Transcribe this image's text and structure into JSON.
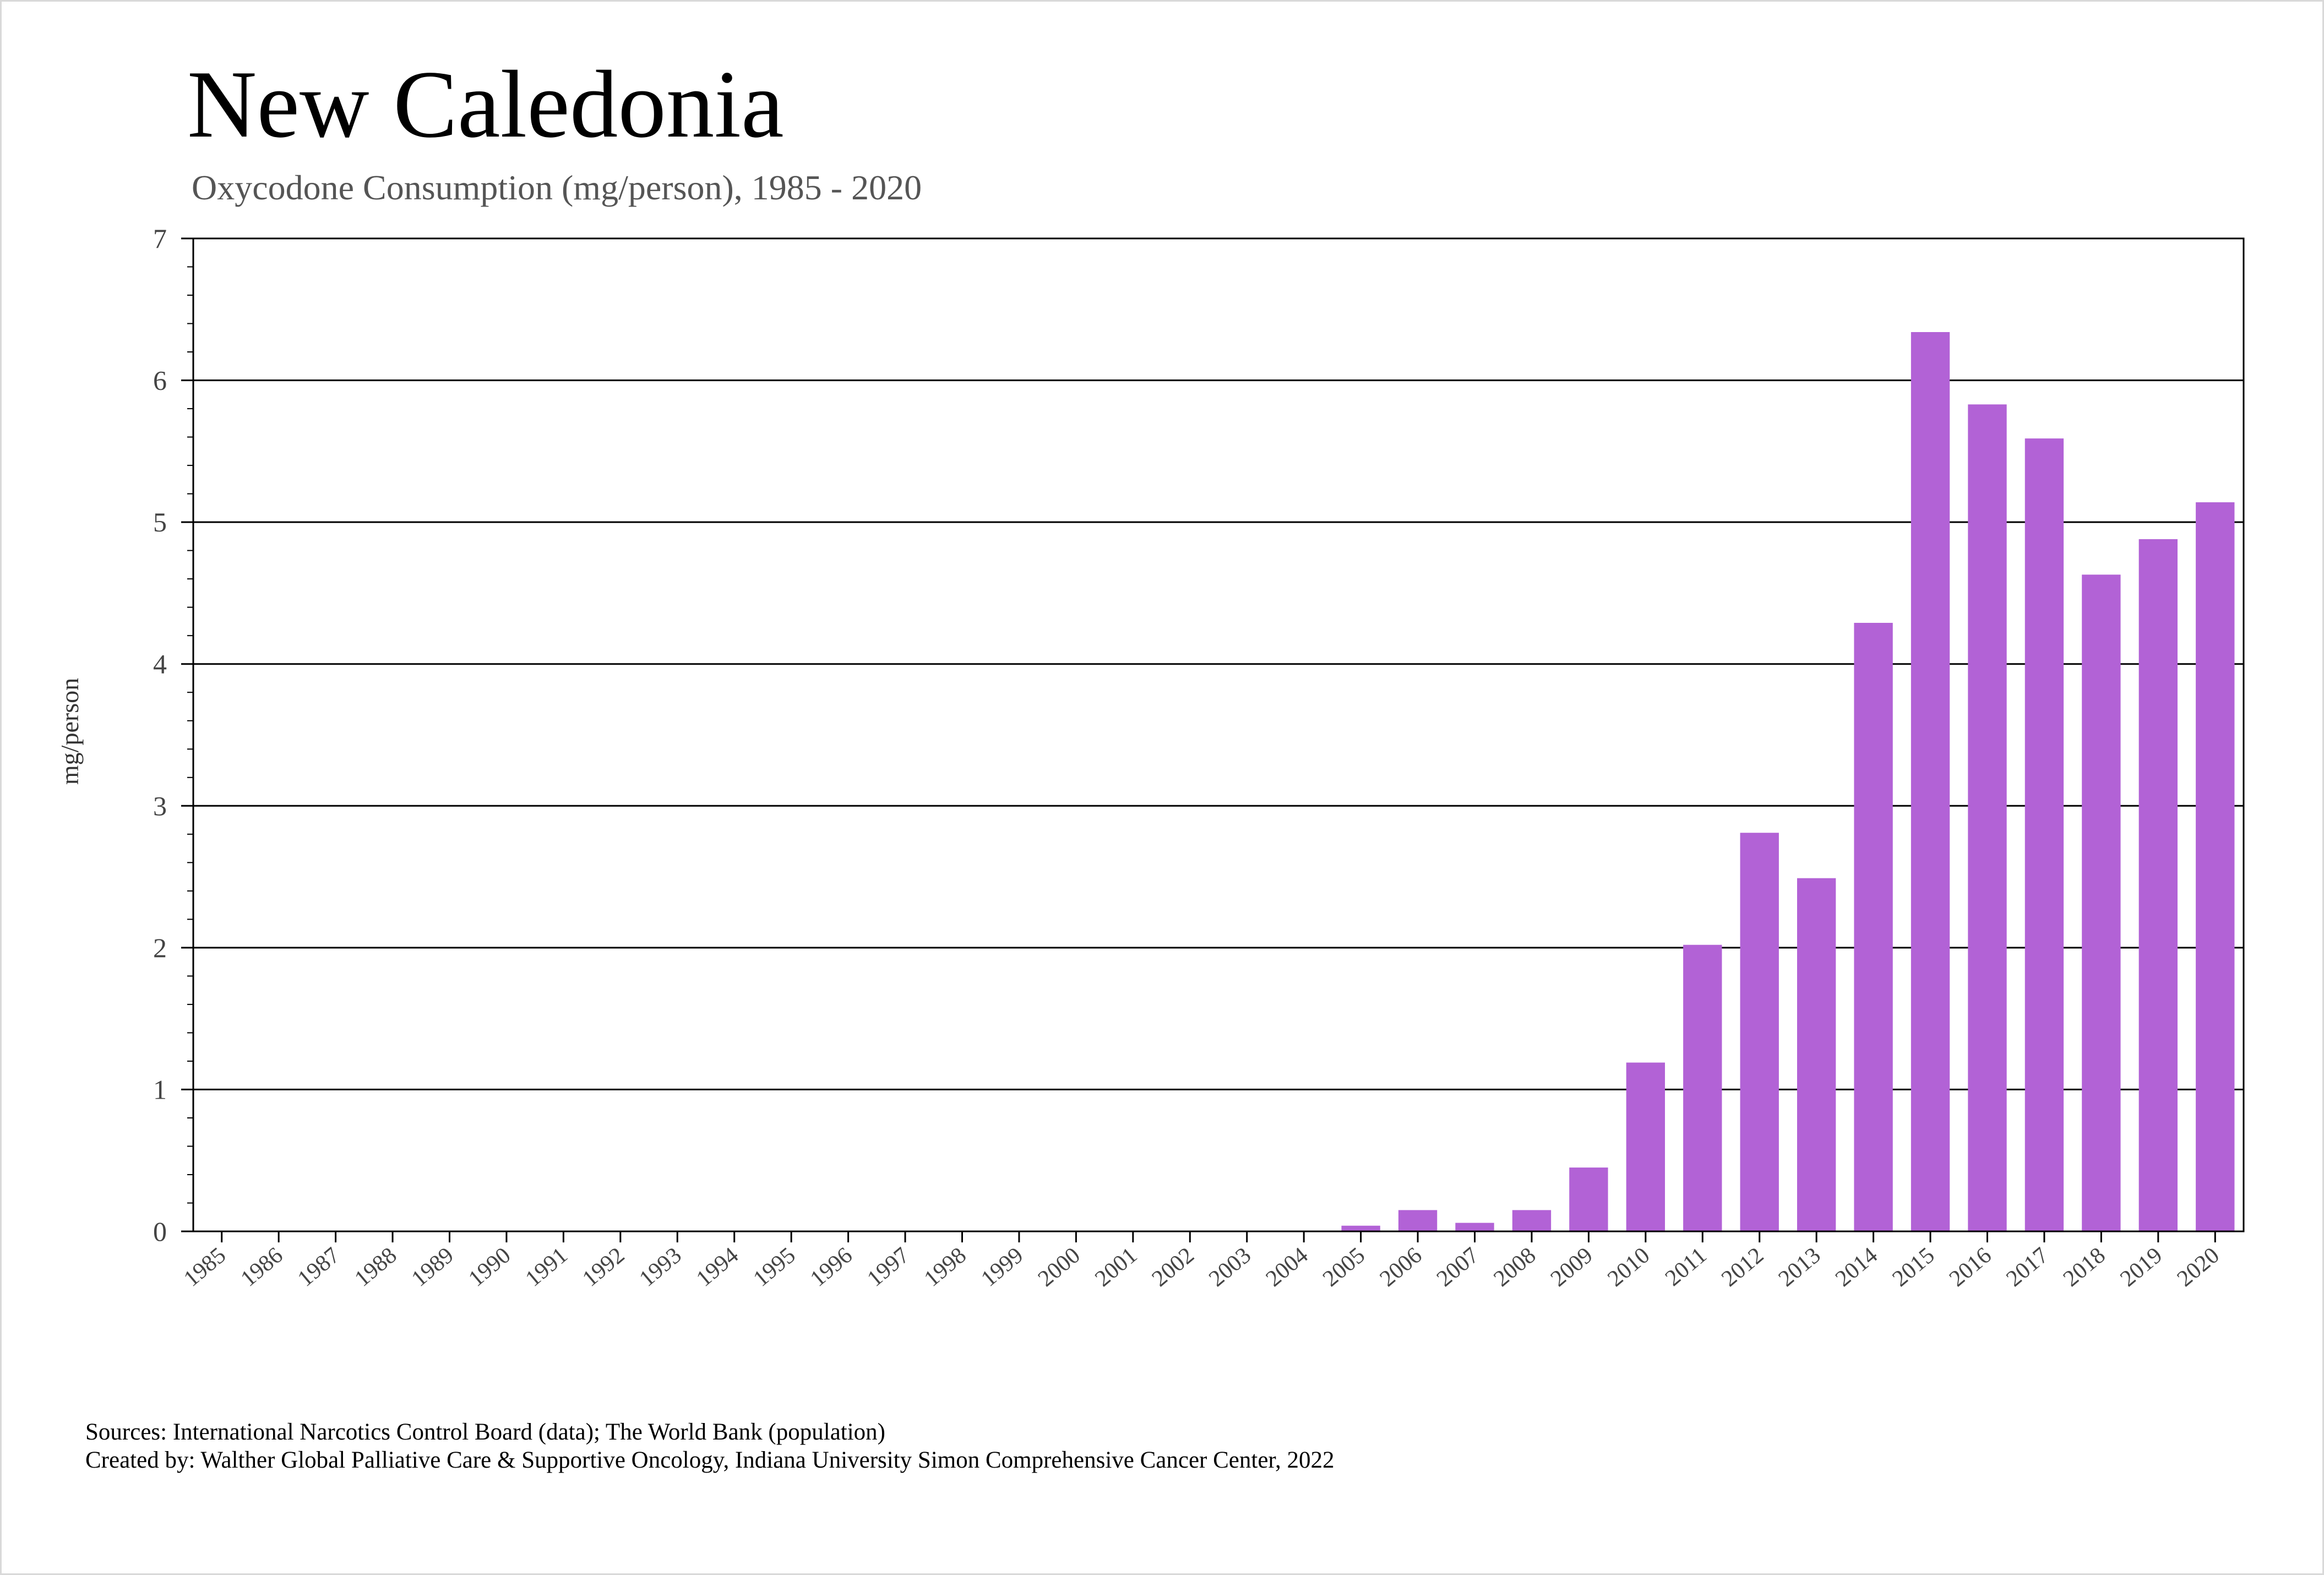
{
  "chart_data": {
    "type": "bar",
    "title": "New Caledonia",
    "subtitle": "Oxycodone Consumption (mg/person), 1985 - 2020",
    "xlabel": "",
    "ylabel": "mg/person",
    "ylim": [
      0,
      7
    ],
    "yticks": [
      "0",
      "1",
      "2",
      "3",
      "4",
      "5",
      "6",
      "7"
    ],
    "grid": true,
    "bar_color": "#b262d6",
    "categories": [
      "1985",
      "1986",
      "1987",
      "1988",
      "1989",
      "1990",
      "1991",
      "1992",
      "1993",
      "1994",
      "1995",
      "1996",
      "1997",
      "1998",
      "1999",
      "2000",
      "2001",
      "2002",
      "2003",
      "2004",
      "2005",
      "2006",
      "2007",
      "2008",
      "2009",
      "2010",
      "2011",
      "2012",
      "2013",
      "2014",
      "2015",
      "2016",
      "2017",
      "2018",
      "2019",
      "2020"
    ],
    "values": [
      0,
      0,
      0,
      0,
      0,
      0,
      0,
      0,
      0,
      0,
      0,
      0,
      0,
      0,
      0,
      0,
      0,
      0,
      0,
      0,
      0.04,
      0.15,
      0.06,
      0.15,
      0.45,
      1.19,
      2.02,
      2.81,
      2.49,
      4.29,
      6.34,
      5.83,
      5.59,
      4.63,
      4.88,
      5.14
    ]
  },
  "footer": {
    "sources": "Sources: International Narcotics Control Board (data); The World Bank (population)",
    "created_by": "Created by: Walther Global Palliative Care & Supportive Oncology, Indiana University Simon Comprehensive Cancer Center, 2022"
  }
}
